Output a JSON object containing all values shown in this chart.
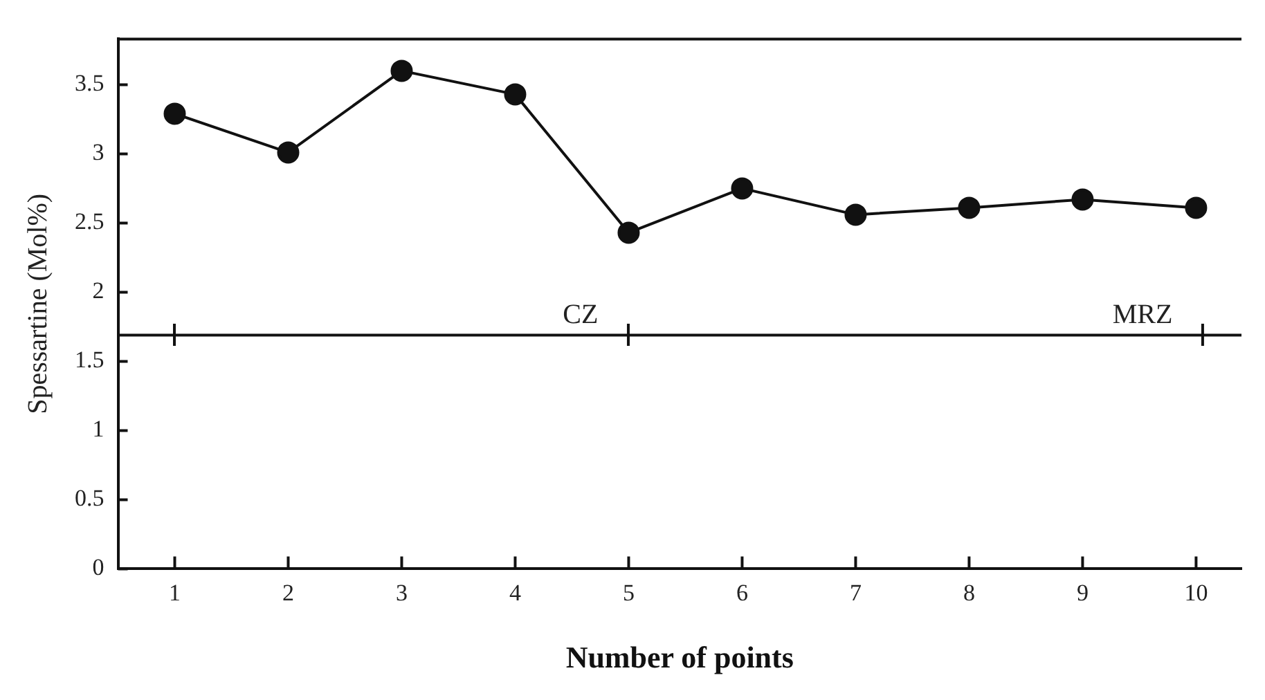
{
  "chart_data": {
    "type": "line",
    "xlabel": "Number of points",
    "ylabel": "Spessartine (Mol%)",
    "x": [
      1,
      2,
      3,
      4,
      5,
      6,
      7,
      8,
      9,
      10
    ],
    "series": [
      {
        "color": "#111111",
        "values": [
          3.29,
          3.01,
          3.6,
          3.43,
          2.43,
          2.75,
          2.56,
          2.61,
          2.67,
          2.61
        ]
      }
    ],
    "xlim": [
      0.5,
      10.4
    ],
    "xticks": [
      1,
      2,
      3,
      4,
      5,
      6,
      7,
      8,
      9,
      10
    ],
    "ylim": [
      0,
      3.83
    ],
    "yticks": [
      0,
      0.5,
      1,
      1.5,
      2,
      2.5,
      3,
      3.5
    ],
    "annotations": [
      "CZ",
      "MRZ"
    ],
    "ref_lines": [
      {
        "axis": "y",
        "value": 1.69,
        "color": "#111111",
        "line_style": "solid"
      }
    ],
    "marker": "circle",
    "line_style": "solid",
    "grid": false,
    "legend": false
  }
}
